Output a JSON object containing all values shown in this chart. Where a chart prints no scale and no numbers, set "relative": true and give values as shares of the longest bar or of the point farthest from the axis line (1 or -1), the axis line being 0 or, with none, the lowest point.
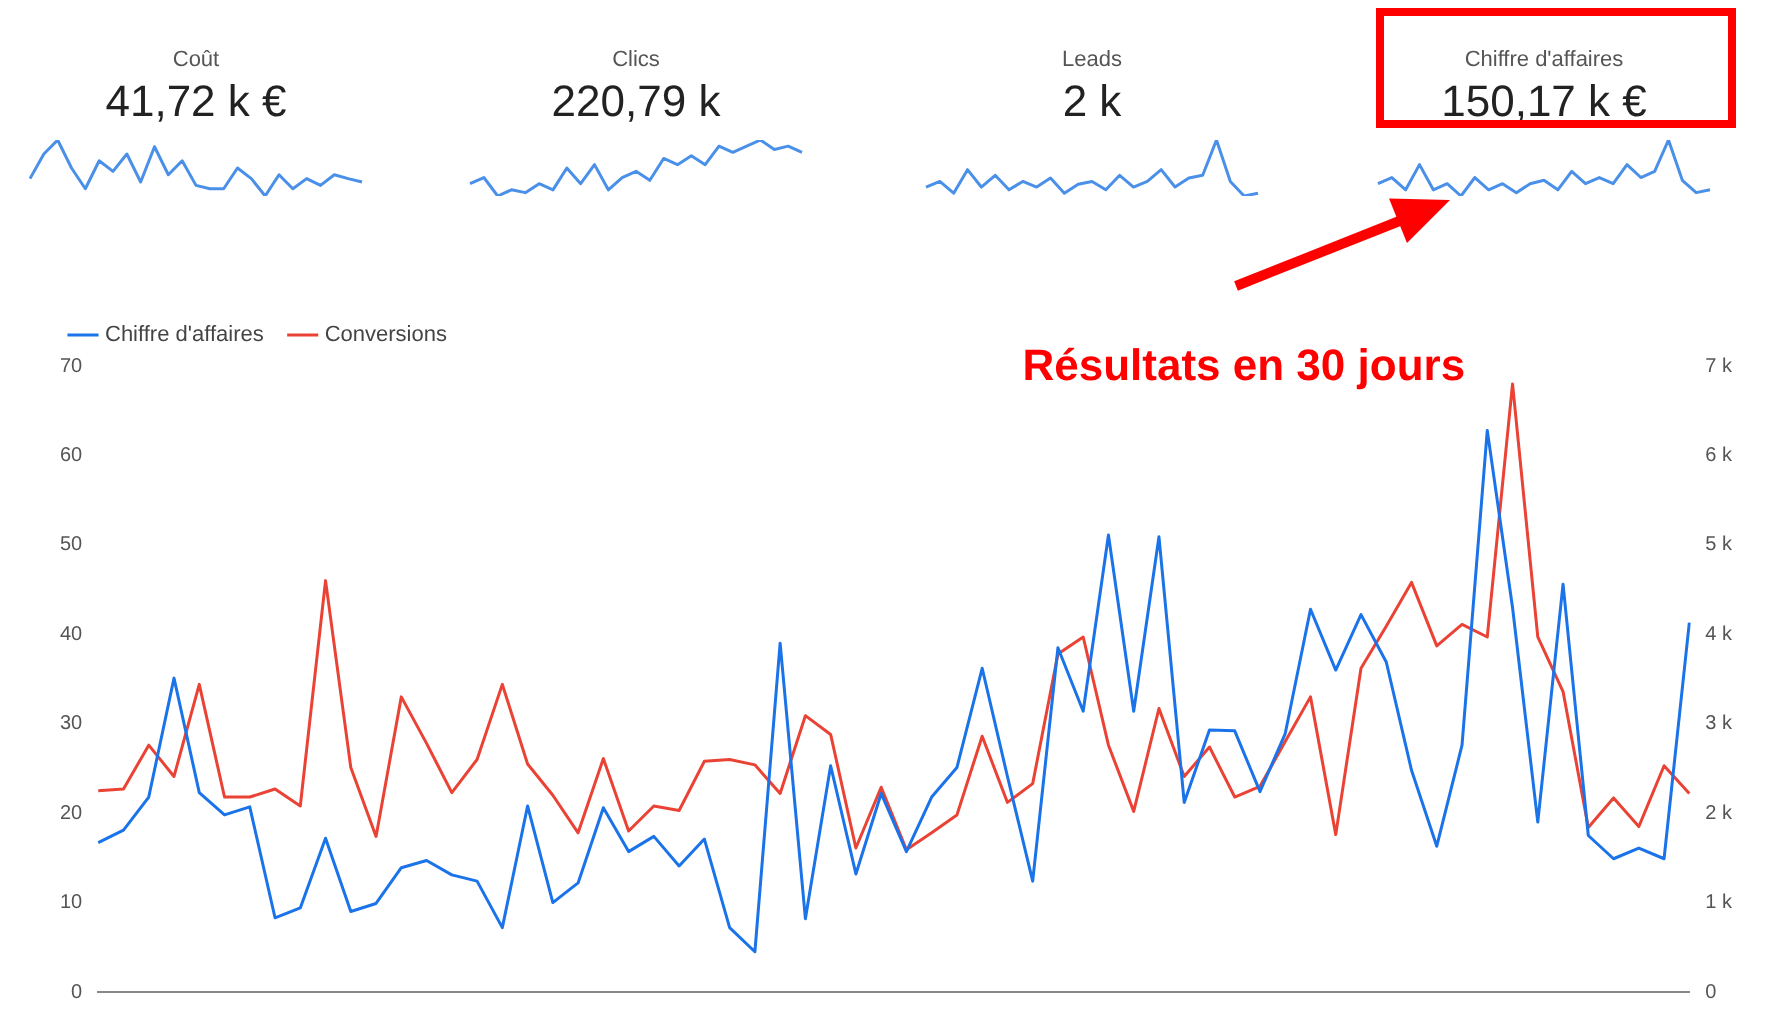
{
  "chart_data": [
    {
      "type": "line",
      "title": "Coût",
      "subtitle": "41,72 k €",
      "relative": true,
      "categories": [
        null,
        null,
        null,
        null,
        null,
        null,
        null,
        null,
        null,
        null,
        null,
        null,
        null,
        null,
        null,
        null,
        null,
        null,
        null,
        null,
        null,
        null,
        null,
        null,
        null
      ],
      "series": [
        {
          "color": "#4a90e8",
          "values": [
            0.31,
            0.75,
            1,
            0.5,
            0.13,
            0.63,
            0.44,
            0.75,
            0.25,
            0.88,
            0.38,
            0.63,
            0.19,
            0.13,
            0.13,
            0.5,
            0.31,
            0,
            0.38,
            0.13,
            0.31,
            0.19,
            0.38,
            0.31,
            0.25
          ]
        }
      ]
    },
    {
      "type": "line",
      "title": "Clics",
      "subtitle": "220,79 k",
      "relative": true,
      "categories": [
        null,
        null,
        null,
        null,
        null,
        null,
        null,
        null,
        null,
        null,
        null,
        null,
        null,
        null,
        null,
        null,
        null,
        null,
        null,
        null,
        null,
        null,
        null,
        null,
        null
      ],
      "series": [
        {
          "color": "#4a90e8",
          "values": [
            0.22,
            0.33,
            0,
            0.11,
            0.06,
            0.22,
            0.11,
            0.5,
            0.22,
            0.56,
            0.11,
            0.33,
            0.44,
            0.28,
            0.67,
            0.56,
            0.72,
            0.56,
            0.89,
            0.78,
            0.89,
            1,
            0.83,
            0.89,
            0.78
          ]
        }
      ]
    },
    {
      "type": "line",
      "title": "Leads",
      "subtitle": "2 k",
      "relative": true,
      "categories": [
        null,
        null,
        null,
        null,
        null,
        null,
        null,
        null,
        null,
        null,
        null,
        null,
        null,
        null,
        null,
        null,
        null,
        null,
        null,
        null,
        null,
        null,
        null,
        null,
        null
      ],
      "series": [
        {
          "color": "#4a90e8",
          "values": [
            0.16,
            0.26,
            0.05,
            0.47,
            0.16,
            0.37,
            0.11,
            0.26,
            0.16,
            0.32,
            0.05,
            0.21,
            0.26,
            0.11,
            0.37,
            0.16,
            0.26,
            0.47,
            0.16,
            0.32,
            0.37,
            1,
            0.26,
            0,
            0.05
          ]
        }
      ]
    },
    {
      "type": "line",
      "title": "Chiffre d'affaires",
      "subtitle": "150,17 k €",
      "relative": true,
      "categories": [
        null,
        null,
        null,
        null,
        null,
        null,
        null,
        null,
        null,
        null,
        null,
        null,
        null,
        null,
        null,
        null,
        null,
        null,
        null,
        null,
        null,
        null,
        null,
        null,
        null
      ],
      "series": [
        {
          "color": "#4a90e8",
          "values": [
            0.22,
            0.33,
            0.11,
            0.56,
            0.11,
            0.22,
            0,
            0.33,
            0.11,
            0.22,
            0.06,
            0.22,
            0.28,
            0.11,
            0.44,
            0.22,
            0.33,
            0.22,
            0.56,
            0.33,
            0.44,
            1,
            0.28,
            0.06,
            0.11
          ]
        }
      ]
    },
    {
      "type": "line",
      "annotations": [
        "Résultats en 30 jours"
      ],
      "legend": "top left",
      "grid": false,
      "tick_labels": "y",
      "categories": [
        null,
        null,
        null,
        null,
        null,
        null,
        null,
        null,
        null,
        null,
        null,
        null,
        null,
        null,
        null,
        null,
        null,
        null,
        null,
        null,
        null,
        null,
        null,
        null,
        null,
        null,
        null,
        null,
        null,
        null,
        null,
        null,
        null,
        null,
        null,
        null,
        null,
        null,
        null,
        null,
        null,
        null,
        null,
        null,
        null,
        null,
        null,
        null,
        null,
        null,
        null,
        null,
        null,
        null,
        null,
        null,
        null,
        null,
        null,
        null,
        null,
        null,
        null,
        null
      ],
      "ylim": [
        0,
        70
      ],
      "yticks": [
        0,
        10,
        20,
        30,
        40,
        50,
        60,
        70
      ],
      "y2lim": [
        0,
        7000
      ],
      "y2ticks": [
        0,
        {
          "value": 1000,
          "label": "1 k"
        },
        {
          "value": 2000,
          "label": "2 k"
        },
        {
          "value": 3000,
          "label": "3 k"
        },
        {
          "value": 4000,
          "label": "4 k"
        },
        {
          "value": 5000,
          "label": "5 k"
        },
        {
          "value": 6000,
          "label": "6 k"
        },
        {
          "value": 7000,
          "label": "7 k"
        }
      ],
      "series": [
        {
          "name": "Chiffre d'affaires",
          "color": "#1a73e8",
          "axis": "y2",
          "values": [
            1670,
            1810,
            2180,
            3510,
            2230,
            1980,
            2070,
            830,
            940,
            1720,
            900,
            990,
            1390,
            1470,
            1310,
            1240,
            720,
            2080,
            1000,
            1220,
            2060,
            1570,
            1740,
            1410,
            1710,
            720,
            450,
            3900,
            820,
            2530,
            1320,
            2220,
            1570,
            2180,
            2510,
            3620,
            2410,
            1240,
            3850,
            3140,
            5110,
            3140,
            5090,
            2120,
            2930,
            2920,
            2240,
            2890,
            4280,
            3600,
            4220,
            3690,
            2480,
            1630,
            2760,
            6280,
            4300,
            1900,
            4560,
            1750,
            1490,
            1610,
            1490,
            4130
          ]
        },
        {
          "name": "Conversions",
          "color": "#ea4335",
          "values": [
            22.5,
            22.7,
            27.6,
            24.1,
            34.4,
            21.8,
            21.8,
            22.7,
            20.8,
            46.0,
            25.1,
            17.4,
            33.0,
            27.8,
            22.3,
            26.0,
            34.4,
            25.5,
            22.0,
            17.8,
            26.1,
            18.0,
            20.8,
            20.3,
            25.8,
            26.0,
            25.4,
            22.2,
            30.9,
            28.8,
            16.1,
            22.9,
            15.9,
            17.8,
            19.8,
            28.6,
            21.2,
            23.3,
            37.8,
            39.7,
            27.6,
            20.2,
            31.7,
            24.1,
            27.4,
            21.8,
            23.0,
            28.0,
            33.0,
            17.6,
            36.2,
            40.9,
            45.8,
            38.7,
            41.1,
            39.7,
            68.0,
            39.7,
            33.6,
            18.4,
            21.7,
            18.5,
            25.3,
            22.2
          ]
        }
      ]
    }
  ]
}
